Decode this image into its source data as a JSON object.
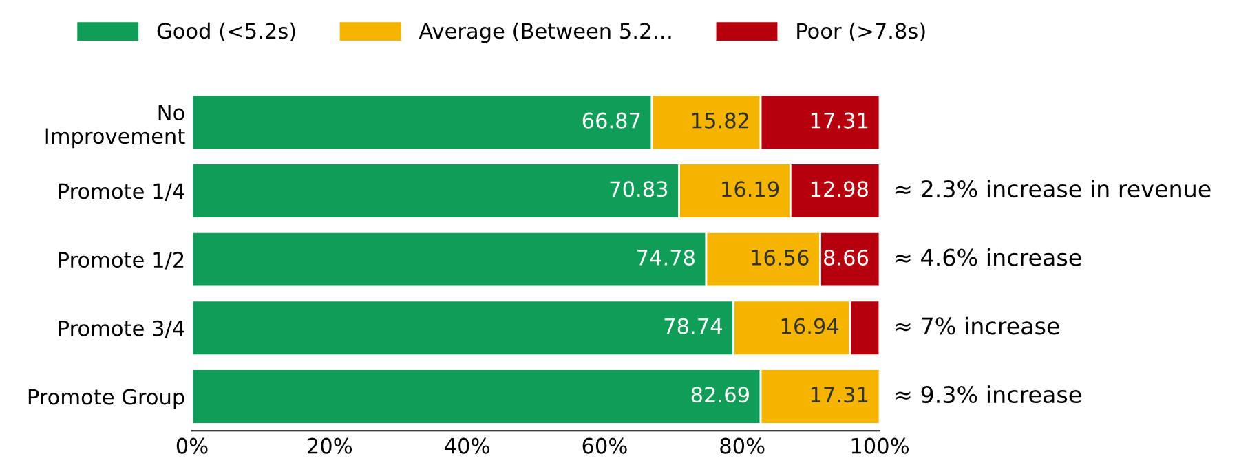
{
  "chart_data": {
    "type": "bar",
    "orientation": "horizontal",
    "stacked": true,
    "categories": [
      "No\nImprovement",
      "Promote 1/4",
      "Promote 1/2",
      "Promote 3/4",
      "Promote Group"
    ],
    "series": [
      {
        "name": "Good (<5.2s)",
        "color": "#0f9d58",
        "values": [
          66.87,
          70.83,
          74.78,
          78.74,
          82.69
        ],
        "value_labels": [
          "66.87",
          "70.83",
          "74.78",
          "78.74",
          "82.69"
        ]
      },
      {
        "name": "Average (Between 5.2…",
        "color": "#f4b400",
        "values": [
          15.82,
          16.19,
          16.56,
          16.94,
          17.31
        ],
        "value_labels": [
          "15.82",
          "16.19",
          "16.56",
          "16.94",
          "17.31"
        ]
      },
      {
        "name": "Poor (>7.8s)",
        "color": "#b7000d",
        "values": [
          17.31,
          12.98,
          8.66,
          4.3,
          null
        ],
        "value_labels": [
          "17.31",
          "12.98",
          "8.66",
          null,
          null
        ]
      }
    ],
    "xlim": [
      0,
      100
    ],
    "xticks": [
      {
        "value": 0,
        "label": "0%"
      },
      {
        "value": 20,
        "label": "20%"
      },
      {
        "value": 40,
        "label": "40%"
      },
      {
        "value": 60,
        "label": "60%"
      },
      {
        "value": 80,
        "label": "80%"
      },
      {
        "value": 100,
        "label": "100%"
      }
    ],
    "legend": "top",
    "grid": false,
    "annotations": [
      "≈ 2.3% increase in revenue",
      "≈ 4.6% increase",
      "≈ 7% increase",
      "≈ 9.3% increase"
    ]
  }
}
